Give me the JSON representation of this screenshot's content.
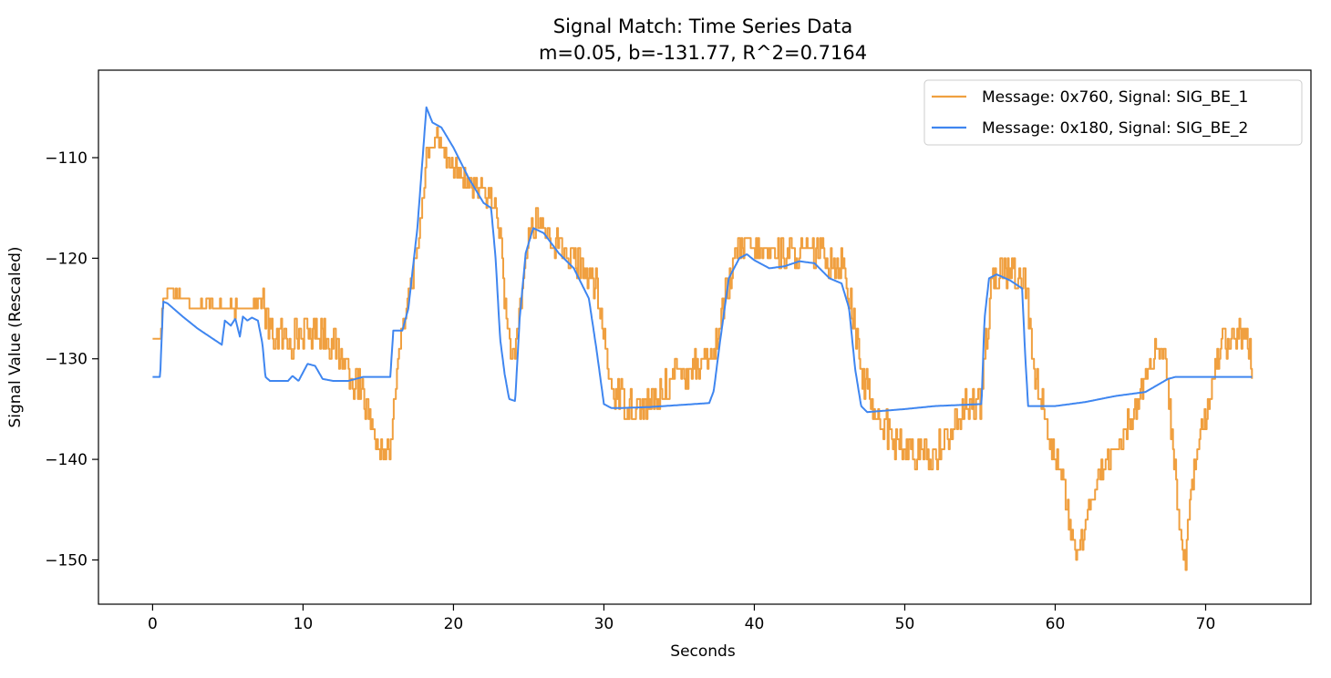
{
  "chart_data": {
    "type": "line",
    "title": "Signal Match: Time Series Data",
    "subtitle": "m=0.05, b=-131.77, R^2=0.7164",
    "xlabel": "Seconds",
    "ylabel": "Signal Value (Rescaled)",
    "xlim": [
      -3.6,
      77.0
    ],
    "ylim": [
      -154.4,
      -101.3
    ],
    "xticks": [
      0,
      10,
      20,
      30,
      40,
      50,
      60,
      70
    ],
    "yticks": [
      -110,
      -120,
      -130,
      -140,
      -150
    ],
    "xtick_labels": [
      "0",
      "10",
      "20",
      "30",
      "40",
      "50",
      "60",
      "70"
    ],
    "ytick_labels": [
      "−110",
      "−120",
      "−130",
      "−140",
      "−150"
    ],
    "grid": false,
    "legend_position": "top-right",
    "series": [
      {
        "name": "Message: 0x760, Signal: SIG_BE_1",
        "color": "#f0a040",
        "noise": [
          0.6,
          1.8,
          1.0,
          1.4,
          1.8,
          1.4,
          1.8,
          1.8,
          1.4,
          1.6
        ],
        "x": [
          0,
          0.5,
          0.7,
          1.2,
          2,
          3,
          4,
          5,
          6,
          6.8,
          7.2,
          7.6,
          8,
          9,
          10,
          11,
          12,
          13,
          14,
          14.6,
          15.4,
          15.8,
          16.3,
          17,
          17.6,
          18.2,
          18.8,
          19.5,
          20.5,
          21.5,
          22.5,
          23,
          23.5,
          24,
          24.5,
          25,
          25.7,
          26.5,
          27.5,
          28.5,
          29.5,
          30.5,
          31.5,
          32.5,
          33.5,
          34.5,
          35.5,
          36.5,
          37.3,
          38,
          39,
          40,
          41,
          42,
          43,
          44,
          45,
          46,
          46.5,
          47,
          48,
          49,
          50,
          51,
          52,
          53,
          54,
          55,
          55.3,
          55.8,
          56.5,
          57.5,
          58.1,
          58.6,
          59.5,
          60.5,
          61.2,
          61.8,
          62.5,
          63.5,
          64.5,
          65.5,
          66.5,
          67.3,
          68.0,
          68.6,
          69.3,
          70,
          71,
          72,
          72.7,
          73.1
        ],
        "y": [
          -128,
          -128,
          -124,
          -123,
          -124,
          -125,
          -124.5,
          -125,
          -125,
          -124.5,
          -124,
          -126,
          -128,
          -128,
          -127.5,
          -127,
          -128.5,
          -131,
          -134,
          -138,
          -139.5,
          -139,
          -130,
          -124,
          -119,
          -110,
          -108,
          -110,
          -112,
          -113,
          -114,
          -116,
          -126,
          -131,
          -124,
          -117,
          -116.5,
          -118,
          -119.5,
          -121,
          -123,
          -133,
          -134.5,
          -135,
          -134,
          -132,
          -131,
          -130,
          -129.5,
          -124,
          -119,
          -119,
          -119.5,
          -119.5,
          -119.5,
          -119.5,
          -120,
          -121,
          -125,
          -131,
          -135,
          -137.5,
          -139,
          -140,
          -139.5,
          -137,
          -135,
          -134,
          -130,
          -123,
          -121,
          -121.5,
          -123,
          -131,
          -137,
          -142,
          -149,
          -148.5,
          -143,
          -140,
          -138,
          -134,
          -130,
          -130,
          -142,
          -150.5,
          -140,
          -136,
          -128,
          -128,
          -128,
          -131
        ]
      },
      {
        "name": "Message: 0x180, Signal: SIG_BE_2",
        "color": "#3f86f0",
        "noise": [
          0,
          0,
          0,
          0,
          0,
          0,
          0,
          0,
          0,
          0
        ],
        "x": [
          0,
          0.5,
          0.7,
          1.0,
          2,
          3,
          4.6,
          4.8,
          5.2,
          5.5,
          5.8,
          6.0,
          6.3,
          6.6,
          7.0,
          7.3,
          7.5,
          7.8,
          9,
          9.3,
          9.7,
          10.3,
          10.8,
          11.3,
          12,
          13,
          14,
          15,
          15.8,
          16.0,
          16.6,
          17,
          17.6,
          18.2,
          18.6,
          19.2,
          20,
          21,
          22,
          22.5,
          22.8,
          23.1,
          23.4,
          23.7,
          24.1,
          24.4,
          24.8,
          25.3,
          26,
          27,
          28,
          29,
          29.5,
          30,
          30.5,
          31,
          33,
          35,
          37,
          37.3,
          37.7,
          38.3,
          39.0,
          39.5,
          40.0,
          41,
          42,
          43,
          44,
          45,
          45.8,
          46.3,
          46.7,
          47.1,
          47.5,
          50,
          52,
          55.1,
          55.3,
          55.6,
          56.1,
          57,
          57.8,
          58.0,
          58.2,
          60,
          62,
          64,
          66,
          67.5,
          68,
          70,
          72,
          73.1
        ],
        "y": [
          -131.8,
          -131.8,
          -124.3,
          -124.5,
          -125.8,
          -127,
          -128.6,
          -126.2,
          -126.7,
          -126.0,
          -127.8,
          -125.8,
          -126.2,
          -125.9,
          -126.2,
          -128.5,
          -131.8,
          -132.2,
          -132.2,
          -131.7,
          -132.2,
          -130.5,
          -130.7,
          -132.0,
          -132.2,
          -132.2,
          -131.8,
          -131.8,
          -131.8,
          -127.2,
          -127.2,
          -125.0,
          -117.0,
          -105.0,
          -106.5,
          -107.0,
          -109.0,
          -112.0,
          -114.5,
          -115.0,
          -120.0,
          -128.0,
          -131.5,
          -134.0,
          -134.2,
          -126.0,
          -119.5,
          -117.0,
          -117.5,
          -119.5,
          -121.0,
          -124.0,
          -129.0,
          -134.5,
          -134.9,
          -134.9,
          -134.8,
          -134.6,
          -134.4,
          -133.2,
          -128.5,
          -122.0,
          -120.0,
          -119.6,
          -120.2,
          -121.0,
          -120.8,
          -120.3,
          -120.5,
          -122.0,
          -122.5,
          -125.0,
          -131.0,
          -134.7,
          -135.3,
          -135.0,
          -134.7,
          -134.5,
          -126.0,
          -122.0,
          -121.6,
          -122.2,
          -123.0,
          -129.5,
          -134.7,
          -134.7,
          -134.3,
          -133.7,
          -133.3,
          -132.0,
          -131.8,
          -131.8,
          -131.8,
          -131.8
        ]
      }
    ]
  }
}
